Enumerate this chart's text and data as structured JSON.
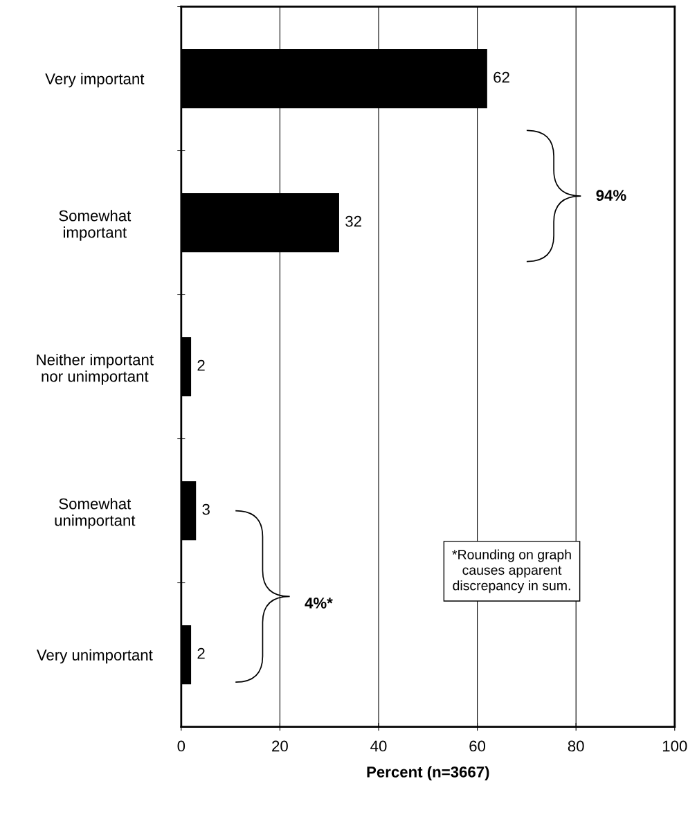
{
  "chart_data": {
    "type": "bar",
    "orientation": "horizontal",
    "categories": [
      "Very important",
      "Somewhat\nimportant",
      "Neither important\nnor unimportant",
      "Somewhat\nunimportant",
      "Very unimportant"
    ],
    "values": [
      62,
      32,
      2,
      3,
      2
    ],
    "color": "#000000",
    "data_labels": true,
    "xlim": [
      0,
      100
    ],
    "xticks": [
      0,
      20,
      40,
      60,
      80,
      100
    ],
    "grid": "x",
    "xlabel": "Percent (n=3667)",
    "annotations": [
      "94%",
      "4%*",
      "*Rounding on graph\ncauses apparent\ndiscrepancy in sum."
    ]
  }
}
